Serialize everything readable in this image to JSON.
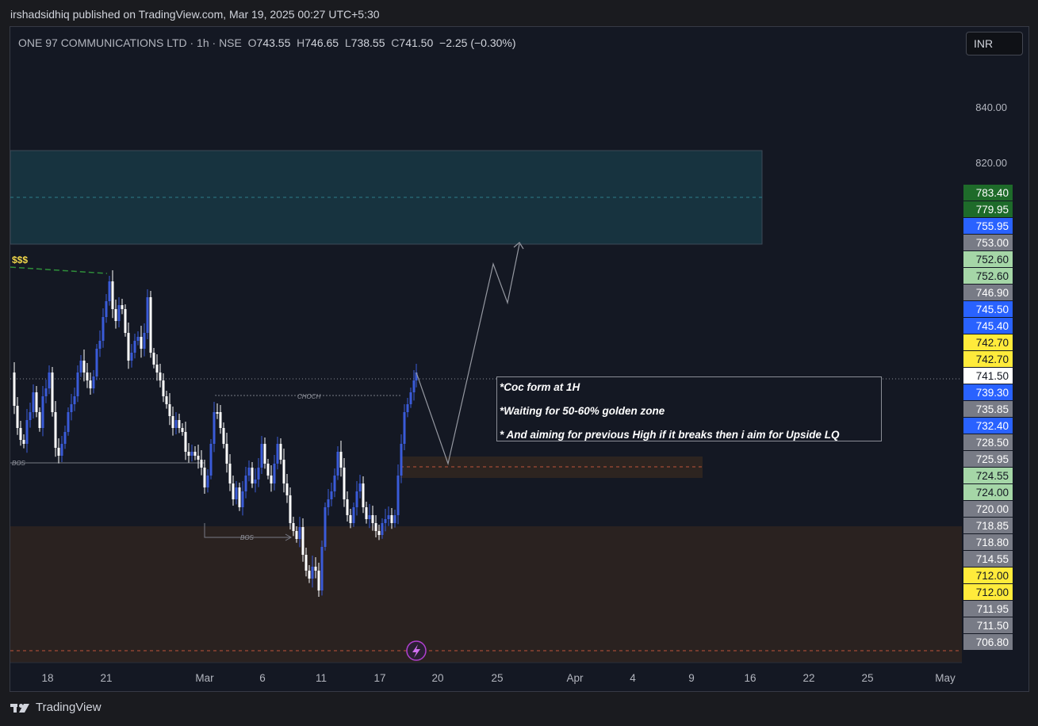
{
  "header": {
    "credit": "irshadsidhiq published on TradingView.com, Mar 19, 2025 00:27 UTC+5:30"
  },
  "legend": {
    "symbol": "ONE 97 COMMUNICATIONS LTD · 1h · NSE",
    "open_label": "O",
    "open": "743.55",
    "high_label": "H",
    "high": "746.65",
    "low_label": "L",
    "low": "738.55",
    "close_label": "C",
    "close": "741.50",
    "change": "−2.25 (−0.30%)"
  },
  "currency_button": "INR",
  "brand": "TradingView",
  "annotations": {
    "liquidity_label": "$$$",
    "choch_label": "CHOCH",
    "bos_label_1": "BOS",
    "bos_label_2": "BOS",
    "note_lines": [
      "*Coc form at 1H",
      "*Waiting for 50-60% golden zone",
      "* And aiming for previous High if it breaks then i aim for Upside LQ"
    ]
  },
  "colors": {
    "up_candle": "#3a5bd9",
    "down_candle": "#ffffff",
    "supply_zone": "#17333f",
    "demand_zone": "#2a2220",
    "dashed_level": "#c0533a",
    "liquidity_line": "#2f8f3a"
  },
  "chart_data": {
    "type": "candlestick",
    "interval": "1h",
    "y_axis_ticks": [
      "840.00",
      "820.00"
    ],
    "x_axis_ticks": [
      "18",
      "21",
      "Mar",
      "6",
      "11",
      "17",
      "20",
      "25",
      "Apr",
      "4",
      "9",
      "16",
      "22",
      "25",
      "May"
    ],
    "price_labels": [
      {
        "value": "783.40",
        "color": "#1e6b2a"
      },
      {
        "value": "779.95",
        "color": "#1e6b2a"
      },
      {
        "value": "755.95",
        "color": "#2962ff"
      },
      {
        "value": "753.00",
        "color": "#787b86"
      },
      {
        "value": "752.60",
        "color": "#a5d6a7"
      },
      {
        "value": "752.60",
        "color": "#a5d6a7"
      },
      {
        "value": "746.90",
        "color": "#787b86"
      },
      {
        "value": "745.50",
        "color": "#2962ff"
      },
      {
        "value": "745.40",
        "color": "#2962ff"
      },
      {
        "value": "742.70",
        "color": "#ffeb3b"
      },
      {
        "value": "742.70",
        "color": "#ffeb3b"
      },
      {
        "value": "741.50",
        "color": "#ffffff"
      },
      {
        "value": "739.30",
        "color": "#2962ff"
      },
      {
        "value": "735.85",
        "color": "#787b86"
      },
      {
        "value": "732.40",
        "color": "#2962ff"
      },
      {
        "value": "728.50",
        "color": "#787b86"
      },
      {
        "value": "725.95",
        "color": "#787b86"
      },
      {
        "value": "724.55",
        "color": "#a5d6a7"
      },
      {
        "value": "724.00",
        "color": "#a5d6a7"
      },
      {
        "value": "720.00",
        "color": "#787b86"
      },
      {
        "value": "718.85",
        "color": "#787b86"
      },
      {
        "value": "718.80",
        "color": "#787b86"
      },
      {
        "value": "714.55",
        "color": "#787b86"
      },
      {
        "value": "712.00",
        "color": "#ffeb3b"
      },
      {
        "value": "712.00",
        "color": "#ffeb3b"
      },
      {
        "value": "711.95",
        "color": "#787b86"
      },
      {
        "value": "711.50",
        "color": "#787b86"
      },
      {
        "value": "706.80",
        "color": "#787b86"
      }
    ]
  }
}
